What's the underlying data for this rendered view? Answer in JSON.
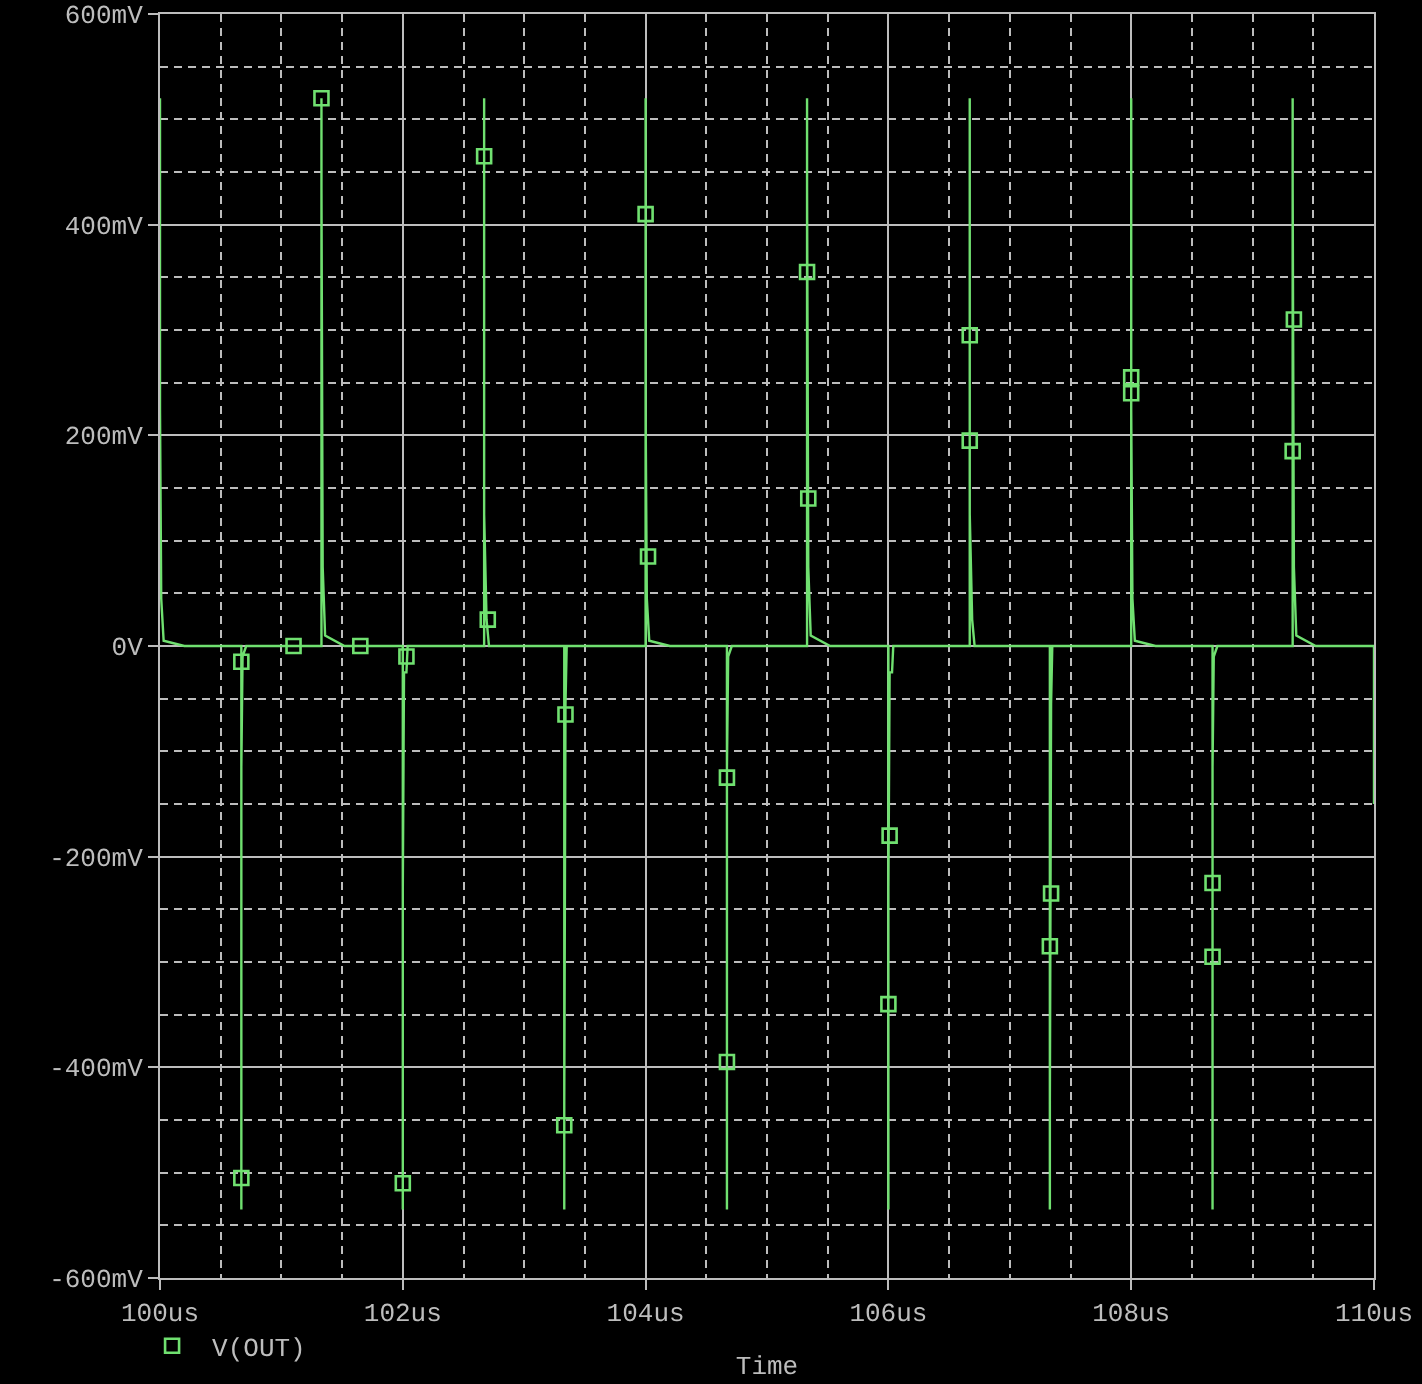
{
  "chart_data": {
    "type": "line",
    "xlabel": "Time",
    "xlim": [
      100,
      110
    ],
    "ylim": [
      -600,
      600
    ],
    "xticks": [
      {
        "value": 100,
        "label": "100us"
      },
      {
        "value": 100.5,
        "label": null
      },
      {
        "value": 101,
        "label": null
      },
      {
        "value": 101.5,
        "label": null
      },
      {
        "value": 102,
        "label": "102us"
      },
      {
        "value": 102.5,
        "label": null
      },
      {
        "value": 103,
        "label": null
      },
      {
        "value": 103.5,
        "label": null
      },
      {
        "value": 104,
        "label": "104us"
      },
      {
        "value": 104.5,
        "label": null
      },
      {
        "value": 105,
        "label": null
      },
      {
        "value": 105.5,
        "label": null
      },
      {
        "value": 106,
        "label": "106us"
      },
      {
        "value": 106.5,
        "label": null
      },
      {
        "value": 107,
        "label": null
      },
      {
        "value": 107.5,
        "label": null
      },
      {
        "value": 108,
        "label": "108us"
      },
      {
        "value": 108.5,
        "label": null
      },
      {
        "value": 109,
        "label": null
      },
      {
        "value": 109.5,
        "label": null
      },
      {
        "value": 110,
        "label": "110us"
      }
    ],
    "yticks": [
      {
        "value": -600,
        "label": "-600mV"
      },
      {
        "value": -550,
        "label": null
      },
      {
        "value": -500,
        "label": null
      },
      {
        "value": -450,
        "label": null
      },
      {
        "value": -400,
        "label": "-400mV"
      },
      {
        "value": -350,
        "label": null
      },
      {
        "value": -300,
        "label": null
      },
      {
        "value": -250,
        "label": null
      },
      {
        "value": -200,
        "label": "-200mV"
      },
      {
        "value": -150,
        "label": null
      },
      {
        "value": -100,
        "label": null
      },
      {
        "value": -50,
        "label": null
      },
      {
        "value": 0,
        "label": "0V"
      },
      {
        "value": 50,
        "label": null
      },
      {
        "value": 100,
        "label": null
      },
      {
        "value": 150,
        "label": null
      },
      {
        "value": 200,
        "label": "200mV"
      },
      {
        "value": 250,
        "label": null
      },
      {
        "value": 300,
        "label": null
      },
      {
        "value": 350,
        "label": null
      },
      {
        "value": 400,
        "label": "400mV"
      },
      {
        "value": 450,
        "label": null
      },
      {
        "value": 500,
        "label": null
      },
      {
        "value": 550,
        "label": null
      },
      {
        "value": 600,
        "label": "600mV"
      }
    ],
    "grid": true,
    "legend": "bottom left",
    "series": [
      {
        "color": "#70e070",
        "x": [
          100.0,
          100.0,
          100.01,
          100.03,
          100.2,
          100.67,
          100.67,
          100.67,
          100.68,
          100.71,
          101.33,
          101.33,
          101.33,
          101.34,
          101.36,
          101.52,
          102.0,
          102.0,
          102.0,
          102.01,
          102.03,
          102.04,
          102.67,
          102.67,
          102.67,
          102.69,
          102.71,
          103.33,
          103.33,
          103.33,
          103.34,
          103.35,
          104.0,
          104.0,
          104.0,
          104.01,
          104.03,
          104.2,
          104.67,
          104.67,
          104.67,
          104.68,
          104.71,
          105.33,
          105.33,
          105.33,
          105.34,
          105.36,
          105.52,
          106.0,
          106.0,
          106.0,
          106.01,
          106.03,
          106.04,
          106.67,
          106.67,
          106.67,
          106.69,
          106.71,
          107.33,
          107.33,
          107.33,
          107.34,
          107.35,
          108.0,
          108.0,
          108.0,
          108.01,
          108.03,
          108.2,
          108.67,
          108.67,
          108.67,
          108.68,
          108.71,
          109.33,
          109.33,
          109.33,
          109.34,
          109.36,
          109.52,
          110.0,
          110.0
        ],
        "values": [
          520,
          225,
          45,
          5,
          0,
          0,
          -535,
          -115,
          -10,
          0,
          0,
          520,
          435,
          75,
          10,
          0,
          0,
          -535,
          -230,
          -25,
          -25,
          0,
          0,
          520,
          125,
          25,
          0,
          0,
          -535,
          -435,
          -55,
          0,
          0,
          520,
          225,
          45,
          5,
          0,
          0,
          -535,
          -115,
          -10,
          0,
          0,
          520,
          435,
          75,
          10,
          0,
          0,
          -535,
          -230,
          -25,
          -25,
          0,
          0,
          520,
          125,
          25,
          0,
          0,
          -535,
          -435,
          -55,
          0,
          0,
          520,
          225,
          45,
          5,
          0,
          0,
          -535,
          -115,
          -10,
          0,
          0,
          520,
          435,
          75,
          10,
          0,
          0,
          -150
        ]
      },
      {
        "type": "scatter",
        "name": "V(OUT)",
        "color": "#70e070",
        "marker": "square",
        "x": [
          100.67,
          100.67,
          101.1,
          101.33,
          101.65,
          102.0,
          102.03,
          102.67,
          102.7,
          103.33,
          103.34,
          104.0,
          104.02,
          104.67,
          104.67,
          105.33,
          105.34,
          106.0,
          106.01,
          106.67,
          106.67,
          107.33,
          107.34,
          108.0,
          108.0,
          108.67,
          108.67,
          109.33,
          109.34
        ],
        "values": [
          -15,
          -505,
          0,
          520,
          0,
          -510,
          -10,
          465,
          25,
          -455,
          -65,
          410,
          85,
          -125,
          -395,
          355,
          140,
          -340,
          -180,
          295,
          195,
          -285,
          -235,
          255,
          240,
          -225,
          -295,
          185,
          310
        ]
      }
    ]
  }
}
